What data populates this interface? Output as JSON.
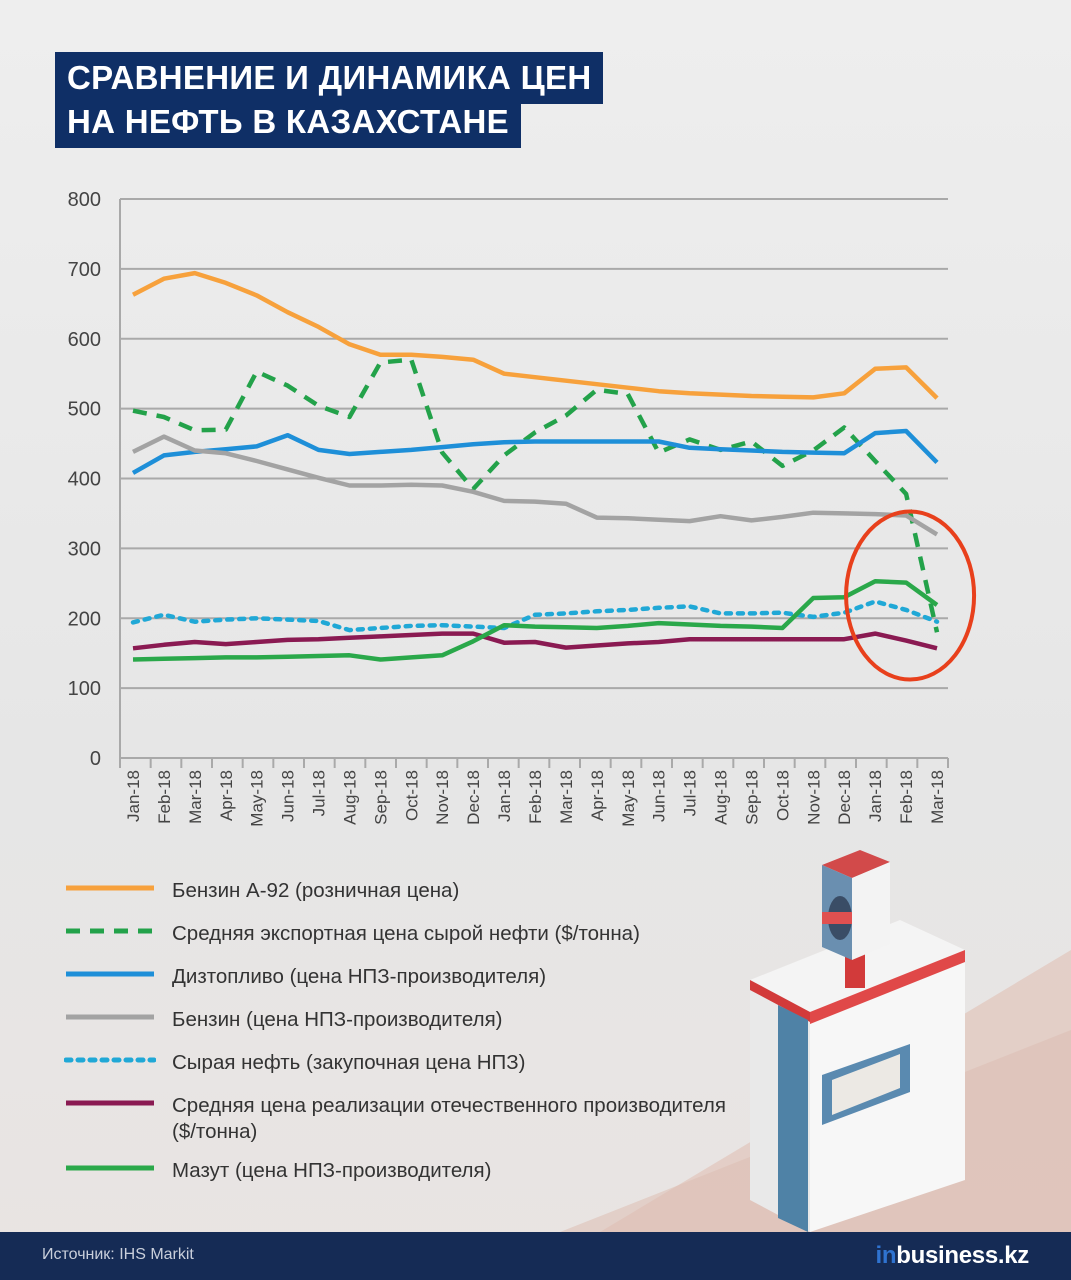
{
  "title": {
    "line1": "СРАВНЕНИЕ И ДИНАМИКА ЦЕН",
    "line2": "НА НЕФТЬ В КАЗАХСТАНЕ"
  },
  "footer": {
    "source": "Источник: IHS Markit",
    "logo_prefix": "in",
    "logo_main": "business.kz"
  },
  "chart_data": {
    "type": "line",
    "ylim": [
      0,
      800
    ],
    "yticks": [
      0,
      100,
      200,
      300,
      400,
      500,
      600,
      700,
      800
    ],
    "grid": true,
    "x": [
      "Jan-18",
      "Feb-18",
      "Mar-18",
      "Apr-18",
      "May-18",
      "Jun-18",
      "Jul-18",
      "Aug-18",
      "Sep-18",
      "Oct-18",
      "Nov-18",
      "Dec-18",
      "Jan-18",
      "Feb-18",
      "Mar-18",
      "Apr-18",
      "May-18",
      "Jun-18",
      "Jul-18",
      "Aug-18",
      "Sep-18",
      "Oct-18",
      "Nov-18",
      "Dec-18",
      "Jan-18",
      "Feb-18",
      "Mar-18"
    ],
    "series": [
      {
        "name": "Бензин А-92 (розничная цена)",
        "color": "#f7a13c",
        "style": "solid",
        "values": [
          663,
          686,
          694,
          680,
          662,
          638,
          617,
          592,
          577,
          577,
          574,
          570,
          550,
          545,
          540,
          535,
          530,
          525,
          522,
          520,
          518,
          517,
          516,
          522,
          557,
          559,
          515
        ]
      },
      {
        "name": "Средняя экспортная цена сырой нефти ($/тонна)",
        "color": "#23a24a",
        "style": "dashed",
        "values": [
          497,
          488,
          469,
          470,
          553,
          533,
          504,
          488,
          566,
          570,
          437,
          385,
          433,
          466,
          490,
          527,
          521,
          437,
          456,
          441,
          453,
          418,
          440,
          473,
          425,
          378,
          180
        ]
      },
      {
        "name": "Дизтопливо (цена НПЗ-производителя)",
        "color": "#1e8fd8",
        "style": "solid",
        "values": [
          408,
          433,
          438,
          442,
          446,
          462,
          441,
          435,
          438,
          441,
          445,
          449,
          452,
          453,
          453,
          453,
          453,
          453,
          444,
          442,
          440,
          438,
          437,
          436,
          465,
          468,
          423
        ]
      },
      {
        "name": "Бензин (цена НПЗ-производителя)",
        "color": "#a3a3a3",
        "style": "solid",
        "values": [
          438,
          460,
          440,
          436,
          425,
          413,
          401,
          390,
          390,
          391,
          390,
          381,
          368,
          367,
          364,
          344,
          343,
          341,
          339,
          346,
          340,
          345,
          351,
          350,
          349,
          347,
          320
        ]
      },
      {
        "name": "Сырая нефть (закупочная цена НПЗ)",
        "color": "#20a8d6",
        "style": "dotted",
        "values": [
          194,
          205,
          195,
          198,
          200,
          198,
          196,
          183,
          186,
          189,
          190,
          188,
          186,
          205,
          207,
          210,
          212,
          215,
          217,
          207,
          207,
          208,
          202,
          208,
          224,
          212,
          195
        ]
      },
      {
        "name": "Средняя цена реализации отечественного производителя ($/тонна)",
        "color": "#8a1a52",
        "style": "solid",
        "values": [
          157,
          162,
          166,
          163,
          166,
          169,
          170,
          172,
          174,
          176,
          178,
          178,
          165,
          166,
          158,
          161,
          164,
          166,
          170,
          170,
          170,
          170,
          170,
          170,
          178,
          168,
          157
        ]
      },
      {
        "name": "Мазут (цена НПЗ-производителя)",
        "color": "#2aa84a",
        "style": "solid",
        "values": [
          141,
          142,
          143,
          144,
          144,
          145,
          146,
          147,
          141,
          144,
          147,
          167,
          190,
          188,
          187,
          186,
          189,
          193,
          191,
          189,
          188,
          186,
          229,
          230,
          253,
          251,
          219
        ]
      }
    ],
    "annotations": [
      {
        "type": "ellipse",
        "color": "#e8401c",
        "around": "Jan-18..Mar-18 (last)"
      }
    ]
  },
  "legend": [
    {
      "label": "Бензин А-92 (розничная цена)",
      "color": "#f7a13c",
      "style": "solid"
    },
    {
      "label": "Средняя экспортная цена сырой нефти ($/тонна)",
      "color": "#23a24a",
      "style": "dashed"
    },
    {
      "label": "Дизтопливо (цена НПЗ-производителя)",
      "color": "#1e8fd8",
      "style": "solid"
    },
    {
      "label": "Бензин (цена НПЗ-производителя)",
      "color": "#a3a3a3",
      "style": "solid"
    },
    {
      "label": "Сырая нефть (закупочная цена НПЗ)",
      "color": "#20a8d6",
      "style": "dotted"
    },
    {
      "label": "Средняя цена реализации отечественного производителя ($/тонна)",
      "color": "#8a1a52",
      "style": "solid"
    },
    {
      "label": "Мазут (цена НПЗ-производителя)",
      "color": "#2aa84a",
      "style": "solid"
    }
  ]
}
